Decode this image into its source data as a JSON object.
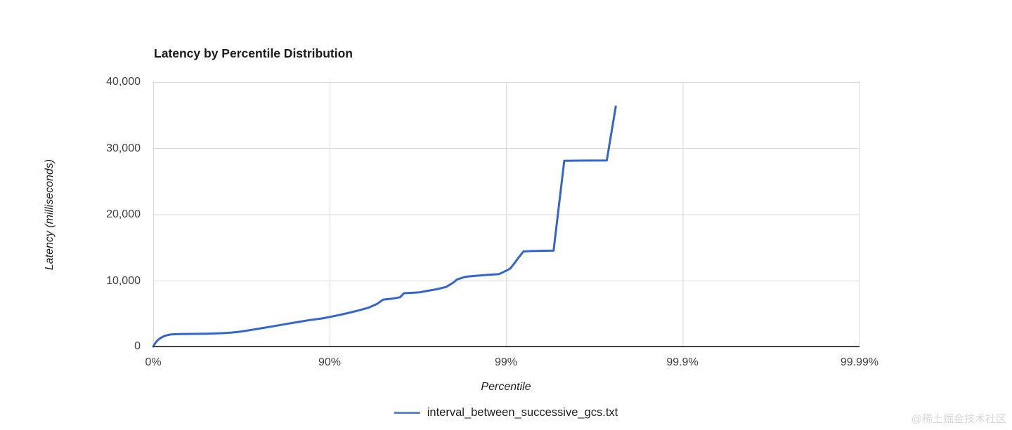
{
  "watermark": "@稀土掘金技术社区",
  "chart_data": {
    "type": "line",
    "title": "Latency by Percentile Distribution",
    "xlabel": "Percentile",
    "ylabel": "Latency (milliseconds)",
    "grid": true,
    "legend_position": "bottom",
    "x_axis": {
      "scale": "log-inverse-percentile",
      "decades": 4,
      "ticks": [
        "0%",
        "90%",
        "99%",
        "99.9%",
        "99.99%"
      ],
      "tick_percentiles": [
        0,
        90,
        99,
        99.9,
        99.99
      ]
    },
    "y_axis": {
      "min": 0,
      "max": 40000,
      "ticks": [
        "40,000",
        "30,000",
        "20,000",
        "10,000",
        "0"
      ],
      "tick_values": [
        40000,
        30000,
        20000,
        10000,
        0
      ]
    },
    "series": [
      {
        "name": "interval_between_successive_gcs.txt",
        "color": "#3366cc",
        "points": [
          [
            0,
            0
          ],
          [
            0.5,
            80
          ],
          [
            1,
            180
          ],
          [
            2,
            380
          ],
          [
            3,
            560
          ],
          [
            4,
            720
          ],
          [
            5,
            860
          ],
          [
            6,
            980
          ],
          [
            8,
            1190
          ],
          [
            10,
            1350
          ],
          [
            12,
            1490
          ],
          [
            14,
            1600
          ],
          [
            16,
            1690
          ],
          [
            18,
            1760
          ],
          [
            20,
            1810
          ],
          [
            23,
            1850
          ],
          [
            26,
            1870
          ],
          [
            30,
            1890
          ],
          [
            35,
            1900
          ],
          [
            40,
            1910
          ],
          [
            45,
            1925
          ],
          [
            50,
            1945
          ],
          [
            55,
            1975
          ],
          [
            60,
            2030
          ],
          [
            64,
            2110
          ],
          [
            67,
            2220
          ],
          [
            70,
            2380
          ],
          [
            73,
            2570
          ],
          [
            76,
            2800
          ],
          [
            79,
            3060
          ],
          [
            81,
            3260
          ],
          [
            83,
            3480
          ],
          [
            85,
            3720
          ],
          [
            87,
            4000
          ],
          [
            89,
            4250
          ],
          [
            90,
            4480
          ],
          [
            91,
            4720
          ],
          [
            92,
            5030
          ],
          [
            93,
            5400
          ],
          [
            94,
            5900
          ],
          [
            94.6,
            6450
          ],
          [
            95,
            7080
          ],
          [
            95.6,
            7260
          ],
          [
            96,
            7450
          ],
          [
            96.2,
            8060
          ],
          [
            96.6,
            8130
          ],
          [
            96.9,
            8200
          ],
          [
            97.2,
            8420
          ],
          [
            97.5,
            8650
          ],
          [
            97.8,
            9000
          ],
          [
            98,
            9650
          ],
          [
            98.1,
            10150
          ],
          [
            98.3,
            10560
          ],
          [
            98.5,
            10700
          ],
          [
            98.7,
            10820
          ],
          [
            98.9,
            10950
          ],
          [
            99,
            11480
          ],
          [
            99.05,
            11800
          ],
          [
            99.1,
            12600
          ],
          [
            99.15,
            13500
          ],
          [
            99.2,
            14380
          ],
          [
            99.3,
            14450
          ],
          [
            99.46,
            14500
          ],
          [
            99.53,
            28100
          ],
          [
            99.6,
            28120
          ],
          [
            99.73,
            28150
          ],
          [
            99.76,
            36300
          ]
        ]
      }
    ]
  }
}
